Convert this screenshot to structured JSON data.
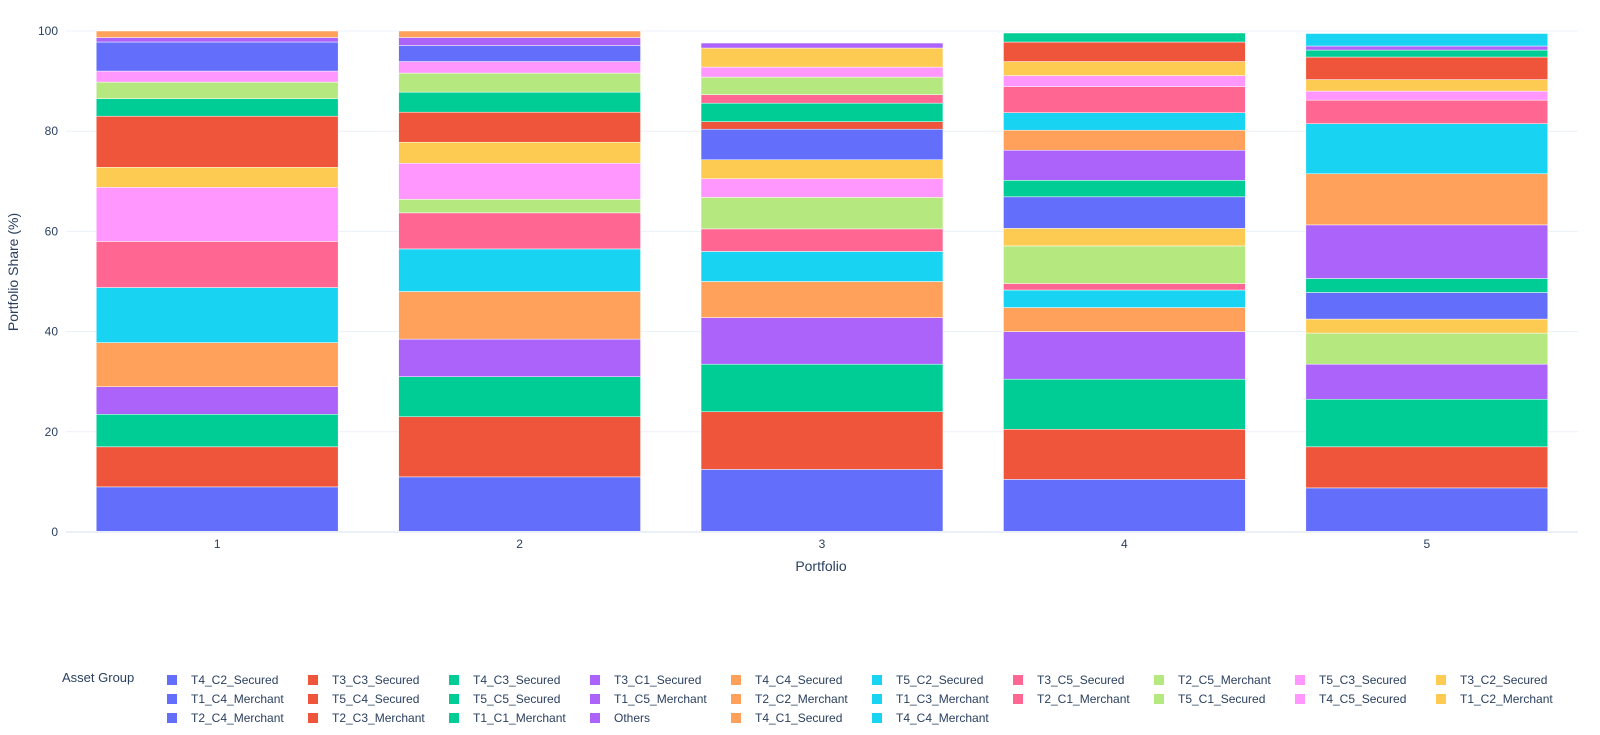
{
  "chart_data": {
    "type": "bar",
    "barmode": "stack",
    "title": "",
    "xlabel": "Portfolio",
    "ylabel": "Portfolio Share (%)",
    "ylim": [
      0,
      100
    ],
    "yticks": [
      0,
      20,
      40,
      60,
      80,
      100
    ],
    "grid": true,
    "categories": [
      "1",
      "2",
      "3",
      "4",
      "5"
    ],
    "legend_title": "Asset Group",
    "legend_position": "bottom",
    "series": [
      {
        "name": "T4_C2_Secured",
        "color": "#636efa",
        "values": [
          9.0,
          11.0,
          12.5,
          10.5,
          8.8
        ]
      },
      {
        "name": "T3_C3_Secured",
        "color": "#ef553b",
        "values": [
          8.0,
          12.0,
          11.5,
          10.0,
          8.2
        ]
      },
      {
        "name": "T4_C3_Secured",
        "color": "#00cc96",
        "values": [
          6.5,
          8.0,
          9.5,
          10.0,
          9.5
        ]
      },
      {
        "name": "T3_C1_Secured",
        "color": "#ab63fa",
        "values": [
          5.5,
          7.5,
          9.3,
          9.5,
          7.0
        ]
      },
      {
        "name": "T4_C4_Secured",
        "color": "#ffa15a",
        "values": [
          8.8,
          9.5,
          7.2,
          4.8,
          0
        ]
      },
      {
        "name": "T5_C2_Secured",
        "color": "#19d3f3",
        "values": [
          11.0,
          8.5,
          6.0,
          3.5,
          0
        ]
      },
      {
        "name": "T3_C5_Secured",
        "color": "#ff6692",
        "values": [
          9.2,
          7.2,
          4.5,
          1.3,
          0
        ]
      },
      {
        "name": "T2_C5_Merchant",
        "color": "#b6e880",
        "values": [
          0,
          2.7,
          6.3,
          7.5,
          6.2
        ]
      },
      {
        "name": "T5_C3_Secured",
        "color": "#ff97ff",
        "values": [
          10.8,
          7.2,
          3.7,
          0,
          0
        ]
      },
      {
        "name": "T3_C2_Secured",
        "color": "#fecb52",
        "values": [
          4.0,
          4.2,
          3.8,
          3.5,
          2.8
        ]
      },
      {
        "name": "T1_C4_Merchant",
        "color": "#636efa",
        "values": [
          0,
          0,
          6.1,
          6.3,
          5.3
        ]
      },
      {
        "name": "T5_C4_Secured",
        "color": "#ef553b",
        "values": [
          10.2,
          6.0,
          1.5,
          0,
          0
        ]
      },
      {
        "name": "T5_C5_Secured",
        "color": "#00cc96",
        "values": [
          3.5,
          4.0,
          3.7,
          3.3,
          2.8
        ]
      },
      {
        "name": "T1_C5_Merchant",
        "color": "#ab63fa",
        "values": [
          0,
          0,
          0,
          6.0,
          10.7
        ]
      },
      {
        "name": "T2_C2_Merchant",
        "color": "#ffa15a",
        "values": [
          0,
          0,
          0,
          4.0,
          10.2
        ]
      },
      {
        "name": "T1_C3_Merchant",
        "color": "#19d3f3",
        "values": [
          0,
          0,
          0,
          3.5,
          10.0
        ]
      },
      {
        "name": "T2_C1_Merchant",
        "color": "#ff6692",
        "values": [
          0,
          0,
          1.7,
          5.2,
          4.7
        ]
      },
      {
        "name": "T5_C1_Secured",
        "color": "#b6e880",
        "values": [
          3.3,
          3.8,
          3.5,
          0,
          0
        ]
      },
      {
        "name": "T4_C5_Secured",
        "color": "#ff97ff",
        "values": [
          2.2,
          2.3,
          2.0,
          2.2,
          1.8
        ]
      },
      {
        "name": "T1_C2_Merchant",
        "color": "#fecb52",
        "values": [
          0,
          0,
          3.8,
          2.8,
          2.3
        ]
      },
      {
        "name": "T2_C4_Merchant",
        "color": "#636efa",
        "values": [
          5.8,
          3.2,
          0,
          0,
          0
        ]
      },
      {
        "name": "T2_C3_Merchant",
        "color": "#ef553b",
        "values": [
          0,
          0,
          0,
          3.9,
          4.5
        ]
      },
      {
        "name": "T1_C1_Merchant",
        "color": "#00cc96",
        "values": [
          0,
          0,
          0,
          1.8,
          1.4
        ]
      },
      {
        "name": "Others",
        "color": "#ab63fa",
        "values": [
          0.9,
          1.6,
          1.0,
          0,
          0.8
        ]
      },
      {
        "name": "T4_C1_Secured",
        "color": "#ffa15a",
        "values": [
          1.3,
          1.3,
          0,
          0,
          0
        ]
      },
      {
        "name": "T4_C4_Merchant",
        "color": "#19d3f3",
        "values": [
          0,
          0,
          0,
          0,
          2.5
        ]
      }
    ]
  }
}
